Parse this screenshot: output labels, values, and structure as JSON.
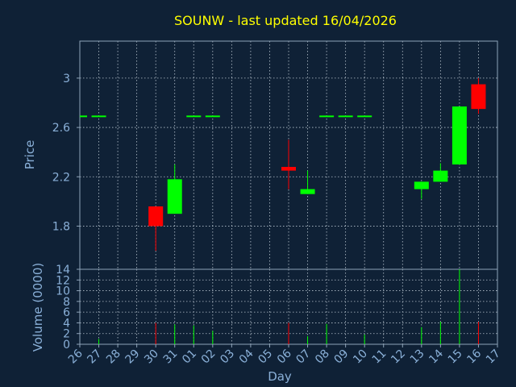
{
  "chart_data": {
    "type": "candlestick",
    "title": "SOUNW - last updated 16/04/2026",
    "xlabel": "Day",
    "ylabel": "Price",
    "volume_label": "Volume (0000)",
    "price_ylim": [
      1.45,
      3.3
    ],
    "price_yticks": [
      1.8,
      2.2,
      2.6,
      3
    ],
    "price_ytick_labels": [
      "1.8",
      "2.2",
      "2.6",
      "3"
    ],
    "volume_ylim": [
      0,
      14
    ],
    "volume_yticks": [
      0,
      2,
      4,
      6,
      8,
      10,
      12,
      14
    ],
    "volume_ytick_labels": [
      "0",
      "2",
      "4",
      "6",
      "8",
      "10",
      "12",
      "14"
    ],
    "grid": true,
    "colors": {
      "background": "#0f2136",
      "axis": "#8ea3b8",
      "grid": "#b8c4cf",
      "title": "#ffff00",
      "label": "#8ab0d8",
      "up": "#00ff00",
      "down": "#ff0000"
    },
    "x_tick_labels": [
      "26",
      "27",
      "28",
      "29",
      "30",
      "31",
      "01",
      "02",
      "03",
      "04",
      "05",
      "06",
      "07",
      "08",
      "09",
      "10",
      "11",
      "12",
      "13",
      "14",
      "15",
      "16",
      "17"
    ],
    "candles": [
      {
        "day": "26",
        "open": 2.69,
        "high": 2.69,
        "low": 2.69,
        "close": 2.69,
        "volume": 0
      },
      {
        "day": "27",
        "open": 2.69,
        "high": 2.69,
        "low": 2.69,
        "close": 2.69,
        "volume": 1
      },
      {
        "day": "30",
        "open": 1.96,
        "high": 1.96,
        "low": 1.6,
        "close": 1.8,
        "volume": 4
      },
      {
        "day": "31",
        "open": 1.9,
        "high": 2.3,
        "low": 1.9,
        "close": 2.18,
        "volume": 3.7
      },
      {
        "day": "01",
        "open": 2.69,
        "high": 2.69,
        "low": 2.69,
        "close": 2.69,
        "volume": 3.5
      },
      {
        "day": "02",
        "open": 2.69,
        "high": 2.69,
        "low": 2.69,
        "close": 2.69,
        "volume": 2.5
      },
      {
        "day": "06",
        "open": 2.28,
        "high": 2.5,
        "low": 2.1,
        "close": 2.25,
        "volume": 4
      },
      {
        "day": "07",
        "open": 2.06,
        "high": 2.25,
        "low": 2.06,
        "close": 2.1,
        "volume": 1.5
      },
      {
        "day": "08",
        "open": 2.69,
        "high": 2.69,
        "low": 2.69,
        "close": 2.69,
        "volume": 3.8
      },
      {
        "day": "09",
        "open": 2.69,
        "high": 2.69,
        "low": 2.69,
        "close": 2.69,
        "volume": 0
      },
      {
        "day": "10",
        "open": 2.69,
        "high": 2.69,
        "low": 2.69,
        "close": 2.69,
        "volume": 1.8
      },
      {
        "day": "13",
        "open": 2.1,
        "high": 2.16,
        "low": 2.02,
        "close": 2.16,
        "volume": 3.2
      },
      {
        "day": "14",
        "open": 2.16,
        "high": 2.31,
        "low": 2.16,
        "close": 2.25,
        "volume": 4.2
      },
      {
        "day": "15",
        "open": 2.3,
        "high": 2.77,
        "low": 2.3,
        "close": 2.77,
        "volume": 14
      },
      {
        "day": "16",
        "open": 2.95,
        "high": 3.0,
        "low": 2.71,
        "close": 2.75,
        "volume": 4.2
      }
    ]
  }
}
